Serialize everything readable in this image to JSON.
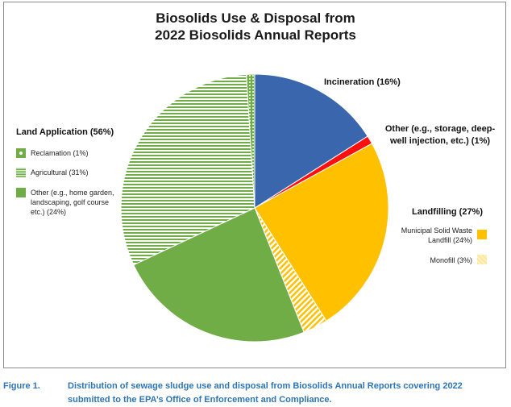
{
  "chart_data": {
    "type": "pie",
    "title_lines": [
      "Biosolids Use & Disposal from",
      "2022 Biosolids Annual Reports"
    ],
    "slices": [
      {
        "name": "Incineration",
        "value": 16,
        "color": "#3a66ad",
        "pattern": "solid"
      },
      {
        "name": "Other (e.g., storage, deep-well injection, etc.)",
        "value": 1,
        "color": "#ff1010",
        "pattern": "solid"
      },
      {
        "name": "Municipal Solid Waste Landfill",
        "value": 24,
        "color": "#ffc000",
        "pattern": "solid"
      },
      {
        "name": "Monofill",
        "value": 3,
        "color": "#ffc000",
        "pattern": "diagonal"
      },
      {
        "name": "Other (e.g., home garden, landscaping, golf course etc.)",
        "value": 24,
        "color": "#70ad47",
        "pattern": "solid"
      },
      {
        "name": "Agricultural",
        "value": 31,
        "color": "#70ad47",
        "pattern": "horizontal"
      },
      {
        "name": "Reclamation",
        "value": 1,
        "color": "#70ad47",
        "pattern": "dots"
      }
    ],
    "labels": {
      "incineration": "Incineration (16%)",
      "other_line1": "Other (e.g., storage, deep-",
      "other_line2": "well injection, etc.) (1%)",
      "landfilling": "Landfilling (27%)",
      "msw_line1": "Municipal Solid Waste",
      "msw_line2": "Landfill (24%)",
      "monofill": "Monofill (3%)",
      "land_application": "Land Application (56%)",
      "reclamation": "Reclamation (1%)",
      "agricultural": "Agricultural (31%)",
      "la_other_line1": "Other (e.g., home garden,",
      "la_other_line2": "landscaping, golf course",
      "la_other_line3": "etc.) (24%)"
    }
  },
  "caption": {
    "number": "Figure 1.",
    "text": "Distribution of sewage sludge use and disposal from Biosolids Annual Reports covering 2022 submitted to the EPA’s Office of Enforcement and Compliance."
  }
}
